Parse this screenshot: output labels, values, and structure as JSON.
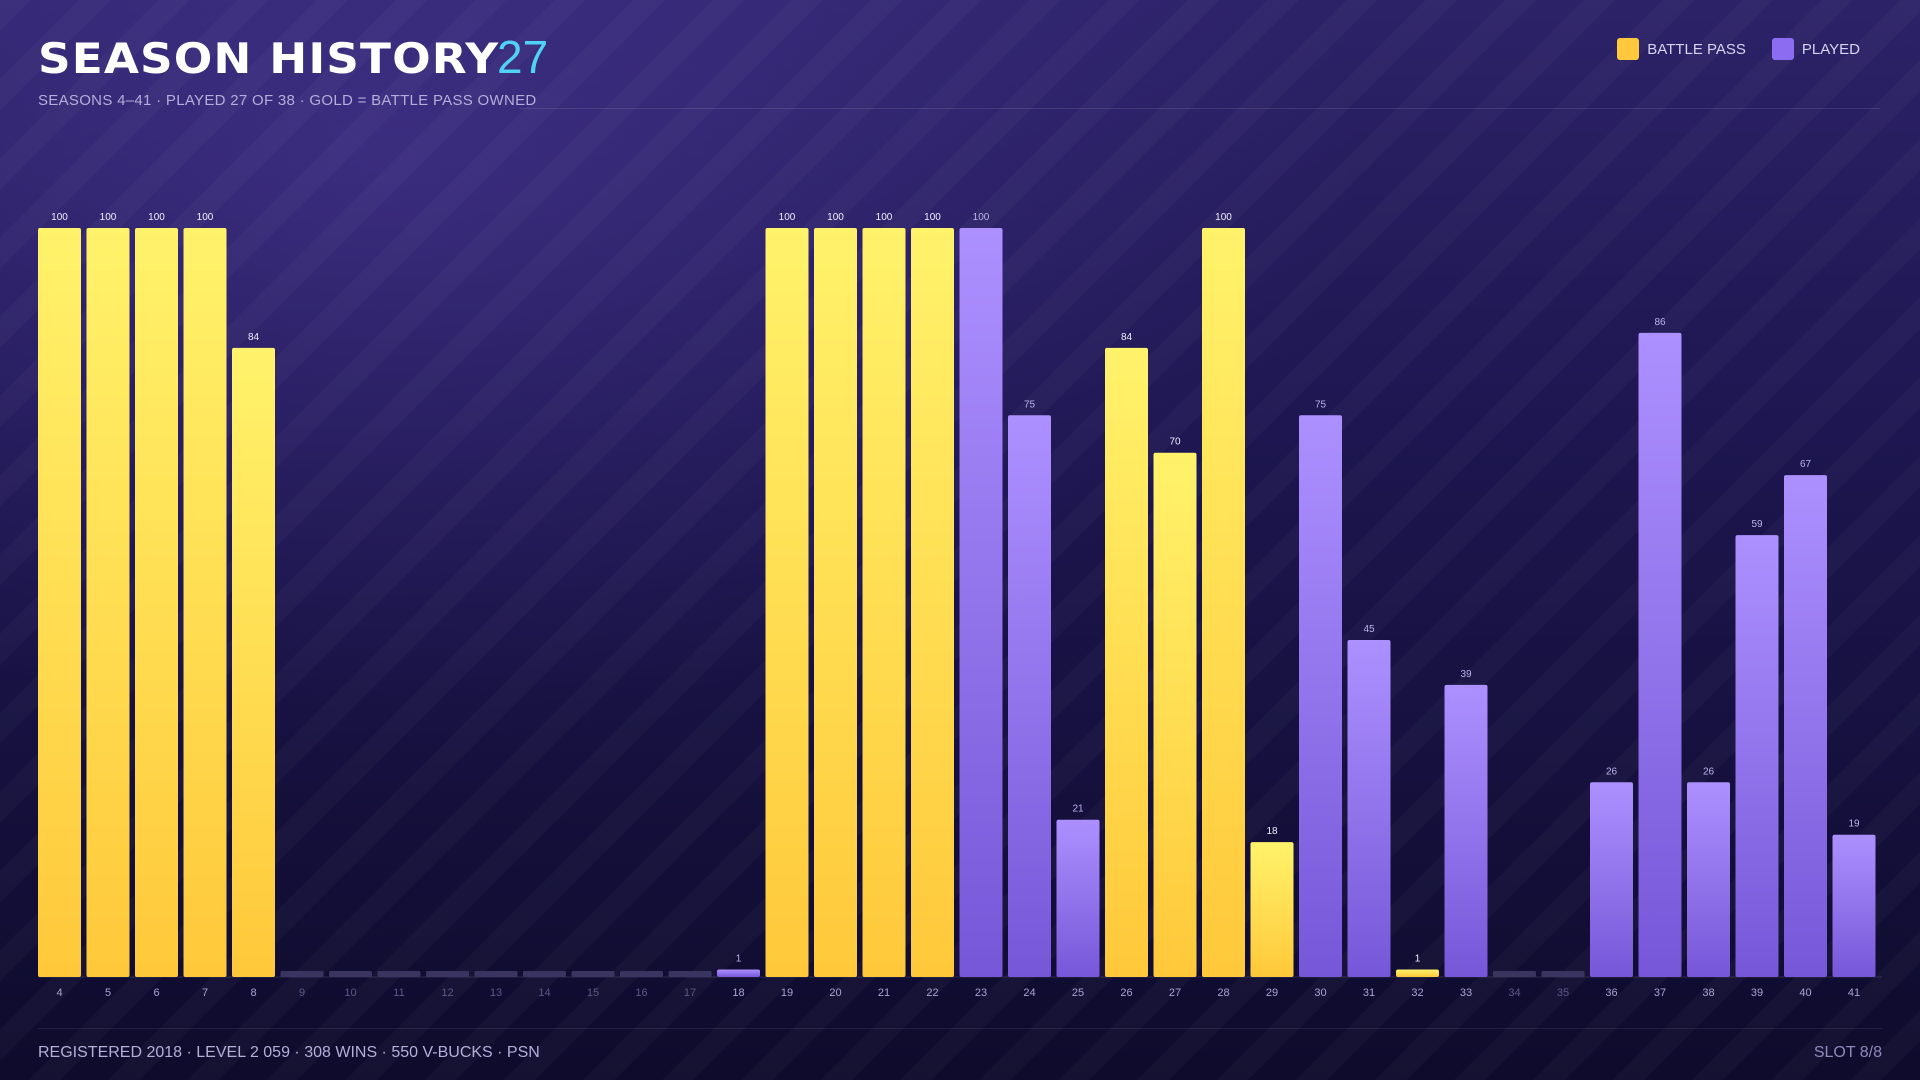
{
  "header": {
    "title": "SEASON HISTORY",
    "count": "27",
    "subtitle": "SEASONS 4–41  ·  PLAYED 27 OF 38  ·  GOLD = BATTLE PASS OWNED"
  },
  "legend": {
    "battle_pass_label": "BATTLE PASS",
    "played_label": "PLAYED"
  },
  "footer": {
    "info": "REGISTERED 2018  ·  LEVEL 2 059  ·  308 WINS  ·  550 V-BUCKS  ·  PSN",
    "slot": "SLOT 8/8"
  },
  "colors": {
    "battle_pass": "#ffc83d",
    "played": "#8c6cf0",
    "unplayed": "#3a3560",
    "accent": "#4fd2f5"
  },
  "chart_data": {
    "type": "bar",
    "categories": [
      "4",
      "5",
      "6",
      "7",
      "8",
      "9",
      "10",
      "11",
      "12",
      "13",
      "14",
      "15",
      "16",
      "17",
      "18",
      "19",
      "20",
      "21",
      "22",
      "23",
      "24",
      "25",
      "26",
      "27",
      "28",
      "29",
      "30",
      "31",
      "32",
      "33",
      "34",
      "35",
      "36",
      "37",
      "38",
      "39",
      "40",
      "41"
    ],
    "values": [
      100,
      100,
      100,
      100,
      84,
      0,
      0,
      0,
      0,
      0,
      0,
      0,
      0,
      0,
      1,
      100,
      100,
      100,
      100,
      100,
      75,
      21,
      84,
      70,
      100,
      18,
      75,
      45,
      1,
      39,
      0,
      0,
      26,
      86,
      26,
      59,
      67,
      19
    ],
    "status": [
      "bp",
      "bp",
      "bp",
      "bp",
      "bp",
      "none",
      "none",
      "none",
      "none",
      "none",
      "none",
      "none",
      "none",
      "none",
      "played",
      "bp",
      "bp",
      "bp",
      "bp",
      "played",
      "played",
      "played",
      "bp",
      "bp",
      "bp",
      "bp",
      "played",
      "played",
      "bp",
      "played",
      "none",
      "none",
      "played",
      "played",
      "played",
      "played",
      "played",
      "played"
    ],
    "ylim": [
      0,
      100
    ],
    "grid": false
  }
}
